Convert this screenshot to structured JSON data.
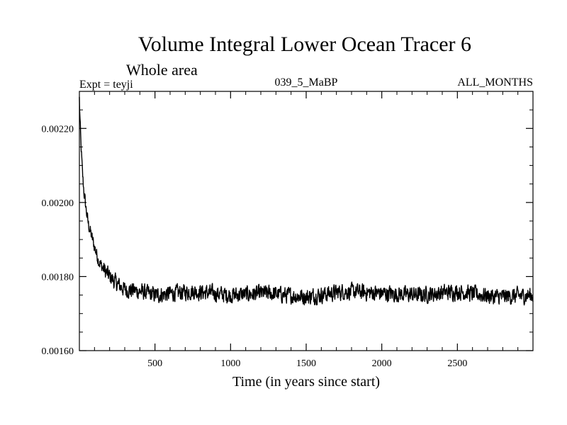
{
  "chart_data": {
    "type": "line",
    "title": "Volume Integral Lower Ocean Tracer 6",
    "subtitle": "Whole area",
    "experiment": "Expt = teyji",
    "run_label": "039_5_MaBP",
    "months_label": "ALL_MONTHS",
    "xlabel": "Time (in years since start)",
    "ylabel": "",
    "xlim": [
      0,
      3000
    ],
    "ylim": [
      0.0016,
      0.0023
    ],
    "x_ticks": [
      500,
      1000,
      1500,
      2000,
      2500
    ],
    "x_tick_labels": [
      "500",
      "1000",
      "1500",
      "2000",
      "2500"
    ],
    "y_ticks": [
      0.0016,
      0.0018,
      0.002,
      0.0022
    ],
    "y_tick_labels": [
      "0.00160",
      "0.00180",
      "0.00200",
      "0.00220"
    ],
    "series": [
      {
        "name": "Lower Ocean Tracer 6",
        "x": [
          0,
          5,
          10,
          20,
          30,
          45,
          60,
          80,
          100,
          130,
          160,
          200,
          250,
          300,
          400,
          500,
          750,
          1000,
          1250,
          1500,
          1750,
          2000,
          2250,
          2500,
          2750,
          3000
        ],
        "values": [
          0.00228,
          0.00221,
          0.00216,
          0.00208,
          0.00203,
          0.00198,
          0.00194,
          0.00191,
          0.00188,
          0.00184,
          0.00182,
          0.0018,
          0.00178,
          0.001765,
          0.00176,
          0.00175,
          0.00176,
          0.00175,
          0.001755,
          0.001745,
          0.00176,
          0.001755,
          0.00175,
          0.00176,
          0.001745,
          0.00175
        ],
        "noise_amplitude": 3e-05
      }
    ]
  }
}
